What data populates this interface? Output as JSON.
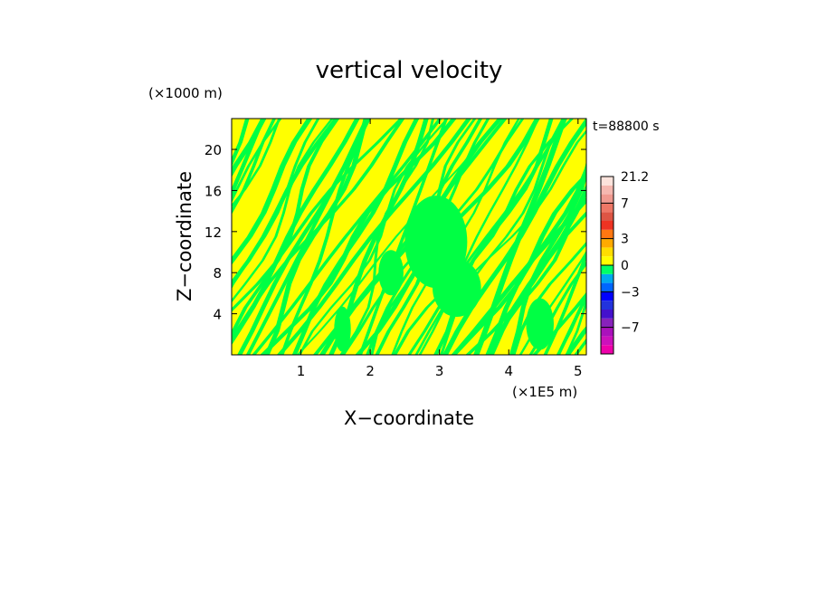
{
  "chart_data": {
    "type": "heatmap",
    "title": "vertical velocity",
    "xlabel": "X−coordinate",
    "ylabel": "Z−coordinate",
    "x_unit": "(×1E5 m)",
    "y_unit": "(×1000 m)",
    "time_label": "t=88800 s",
    "xlim": [
      0,
      5.12
    ],
    "ylim": [
      0,
      23
    ],
    "x_ticks": [
      1,
      2,
      3,
      4,
      5
    ],
    "y_ticks": [
      4,
      8,
      12,
      16,
      20
    ],
    "x_tick_labels": [
      "1",
      "2",
      "3",
      "4",
      "5"
    ],
    "y_tick_labels": [
      "4",
      "8",
      "12",
      "16",
      "20"
    ],
    "field_description": "alternating bands of small positive (yellow, 0 to 1) and small negative (green, -1 to 0) vertical velocity",
    "colorbar": {
      "levels": [
        -10,
        -9,
        -8,
        -7,
        -6,
        -5,
        -4,
        -3,
        -2,
        -1,
        0,
        1,
        2,
        3,
        4,
        5,
        6,
        7,
        10,
        14,
        21.2
      ],
      "colors": [
        "#ee00aa",
        "#cc11bb",
        "#aa11bb",
        "#8822bb",
        "#4411cc",
        "#2233dd",
        "#0000ff",
        "#0066ff",
        "#00aaee",
        "#00ff66",
        "#ffff00",
        "#ffdd00",
        "#ffaa00",
        "#ff7711",
        "#ee3322",
        "#dd5544",
        "#ee7766",
        "#f09a90",
        "#f5b8b0",
        "#fce3dc"
      ],
      "labeled_ticks": [
        -7,
        -3,
        0,
        3,
        7,
        21.2
      ],
      "tick_labels": [
        "−7",
        "−3",
        "0",
        "3",
        "7",
        "21.2"
      ]
    }
  },
  "colors": {
    "positive": "#ffff00",
    "negative": "#00ff44",
    "background": "#ffffff"
  }
}
